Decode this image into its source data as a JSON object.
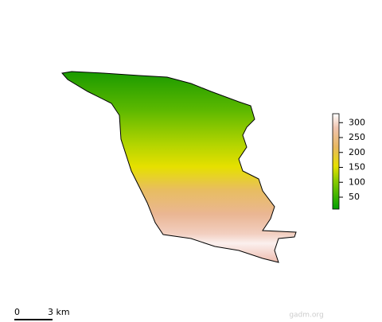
{
  "legend": {
    "range": [
      10,
      330
    ],
    "ticks": [
      50,
      100,
      150,
      200,
      250,
      300
    ]
  },
  "scale_bar": {
    "labels": [
      "0",
      "3 km"
    ]
  },
  "credit": "gadm.org"
}
